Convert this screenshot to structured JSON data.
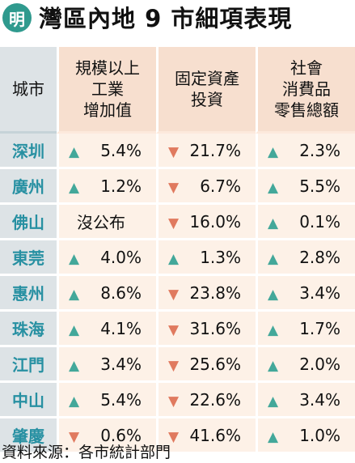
{
  "header": {
    "logo_text": "明",
    "title": "灣區內地 9 市細項表現"
  },
  "colors": {
    "up": "#43a89a",
    "down": "#e07a5f",
    "city": "#2790a2"
  },
  "table": {
    "columns": [
      "城市",
      "規模以上\n工業\n增加值",
      "固定資產\n投資",
      "社會\n消費品\n零售總額"
    ],
    "rows": [
      {
        "city": "深圳",
        "cells": [
          {
            "dir": "up",
            "value": "5.4%"
          },
          {
            "dir": "down",
            "value": "21.7%"
          },
          {
            "dir": "up",
            "value": "2.3%"
          }
        ]
      },
      {
        "city": "廣州",
        "cells": [
          {
            "dir": "up",
            "value": "1.2%"
          },
          {
            "dir": "down",
            "value": "6.7%"
          },
          {
            "dir": "up",
            "value": "5.5%"
          }
        ]
      },
      {
        "city": "佛山",
        "cells": [
          {
            "dir": "none",
            "value": "沒公布"
          },
          {
            "dir": "down",
            "value": "16.0%"
          },
          {
            "dir": "up",
            "value": "0.1%"
          }
        ]
      },
      {
        "city": "東莞",
        "cells": [
          {
            "dir": "up",
            "value": "4.0%"
          },
          {
            "dir": "up",
            "value": "1.3%"
          },
          {
            "dir": "up",
            "value": "2.8%"
          }
        ]
      },
      {
        "city": "惠州",
        "cells": [
          {
            "dir": "up",
            "value": "8.6%"
          },
          {
            "dir": "down",
            "value": "23.8%"
          },
          {
            "dir": "up",
            "value": "3.4%"
          }
        ]
      },
      {
        "city": "珠海",
        "cells": [
          {
            "dir": "up",
            "value": "4.1%"
          },
          {
            "dir": "down",
            "value": "31.6%"
          },
          {
            "dir": "up",
            "value": "1.7%"
          }
        ]
      },
      {
        "city": "江門",
        "cells": [
          {
            "dir": "up",
            "value": "3.4%"
          },
          {
            "dir": "down",
            "value": "25.6%"
          },
          {
            "dir": "up",
            "value": "2.0%"
          }
        ]
      },
      {
        "city": "中山",
        "cells": [
          {
            "dir": "up",
            "value": "5.4%"
          },
          {
            "dir": "down",
            "value": "22.6%"
          },
          {
            "dir": "up",
            "value": "3.4%"
          }
        ]
      },
      {
        "city": "肇慶",
        "cells": [
          {
            "dir": "down",
            "value": "0.6%"
          },
          {
            "dir": "down",
            "value": "41.6%"
          },
          {
            "dir": "up",
            "value": "1.0%"
          }
        ]
      }
    ]
  },
  "footer": {
    "source": "資料來源：各市統計部門"
  }
}
